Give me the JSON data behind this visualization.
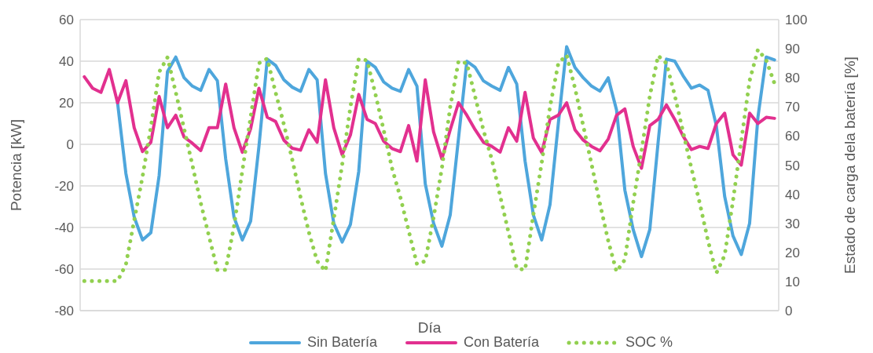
{
  "chart_data": {
    "type": "line",
    "xlabel": "Día",
    "ylabel": "Potencia [kW]",
    "y2label": "Estado de carga dela batería [%]",
    "categories": [
      null,
      null,
      null,
      null,
      null,
      null,
      null,
      null,
      null,
      null,
      null,
      null,
      null,
      null,
      null,
      null,
      null,
      null,
      null,
      null,
      null,
      null,
      null,
      null,
      null,
      null,
      null,
      null,
      null,
      null,
      null,
      null,
      null,
      null,
      null,
      null,
      null,
      null,
      null,
      null,
      null,
      null,
      null,
      null,
      null,
      null,
      null,
      null,
      null,
      null,
      null,
      null,
      null,
      null,
      null,
      null,
      null,
      null,
      null,
      null,
      null,
      null,
      null,
      null,
      null,
      null,
      null,
      null,
      null,
      null,
      null,
      null,
      null,
      null,
      null,
      null,
      null,
      null,
      null,
      null,
      null,
      null,
      null,
      null
    ],
    "ylim": [
      -80,
      60
    ],
    "yticks": [
      -80,
      -60,
      -40,
      -20,
      0,
      20,
      40,
      60
    ],
    "y2lim": [
      0,
      100
    ],
    "y2ticks": [
      0,
      10,
      20,
      30,
      40,
      50,
      60,
      70,
      80,
      90,
      100
    ],
    "grid": "y",
    "legend": "bottom",
    "marker": "none",
    "series": [
      {
        "name": "Sin Batería",
        "color": "#4ea6dc",
        "line_style": "solid",
        "values": [
          null,
          null,
          null,
          null,
          20,
          -14,
          -35,
          -46,
          -42.5,
          -15,
          35,
          42,
          32,
          28,
          26,
          36,
          30.6,
          -7,
          -35,
          -46,
          -37,
          -1,
          41,
          38,
          31,
          27.5,
          25.5,
          36,
          31,
          -14,
          -38,
          -47,
          -38.5,
          -13,
          40,
          37,
          30,
          27,
          25.5,
          36,
          28,
          -19,
          -38,
          -49,
          -34,
          3,
          40,
          37,
          30.5,
          28,
          26,
          37,
          29,
          -8,
          -34,
          -46,
          -29,
          10,
          47,
          37,
          32,
          28,
          25.6,
          32,
          16.5,
          -22,
          -41,
          -54,
          -41,
          1,
          41,
          40,
          33,
          27,
          28.5,
          26,
          9,
          -25,
          -44,
          -53,
          -38,
          13,
          42,
          40.6
        ]
      },
      {
        "name": "Con Batería",
        "color": "#e2308f",
        "line_style": "solid",
        "values": [
          32.5,
          27,
          25,
          36,
          20,
          30.6,
          8,
          -3.5,
          1,
          23,
          8,
          14,
          3.5,
          0.5,
          -3,
          8,
          8,
          29,
          8,
          -3.8,
          7.5,
          27,
          13,
          11,
          2,
          -1.9,
          -2.8,
          7,
          1,
          31,
          8,
          -5,
          4.5,
          24,
          12,
          10,
          1.5,
          -2,
          -3.5,
          9,
          -8,
          31,
          6,
          -7,
          7,
          20,
          14,
          7,
          1,
          -1,
          -3.7,
          8,
          1.5,
          25,
          3,
          -4,
          12,
          14,
          20,
          7,
          2,
          -1,
          -3.1,
          2.5,
          14,
          17,
          -1,
          -11.5,
          9,
          12,
          19,
          12,
          4,
          -2.5,
          -1,
          -2,
          10,
          15,
          -5,
          -10,
          15,
          10,
          13,
          12.5
        ]
      },
      {
        "name": "SOC %",
        "color": "#92d050",
        "line_style": "dotted",
        "axis": "y2",
        "values": [
          10.2,
          10.2,
          10.2,
          10.2,
          10.2,
          15.8,
          31,
          46,
          63,
          82,
          87,
          75,
          62.5,
          50,
          37,
          25.5,
          14,
          14,
          29,
          48,
          66.5,
          85,
          86.6,
          75,
          64,
          52,
          39,
          27,
          17,
          13.6,
          31.5,
          50,
          70,
          86.5,
          86,
          74.5,
          62,
          49,
          39,
          27.5,
          16,
          17,
          32,
          49,
          70,
          85.7,
          85,
          73.5,
          62,
          52,
          39.5,
          27,
          14.5,
          14,
          33,
          50.8,
          70,
          85,
          87.8,
          76.5,
          63.5,
          50.3,
          36.8,
          24,
          13.4,
          17.5,
          37,
          54.8,
          73.7,
          87.6,
          85,
          74,
          61.4,
          49,
          37,
          24,
          12.9,
          19,
          37.7,
          58.4,
          79,
          89.7,
          86.1,
          78
        ]
      }
    ]
  }
}
